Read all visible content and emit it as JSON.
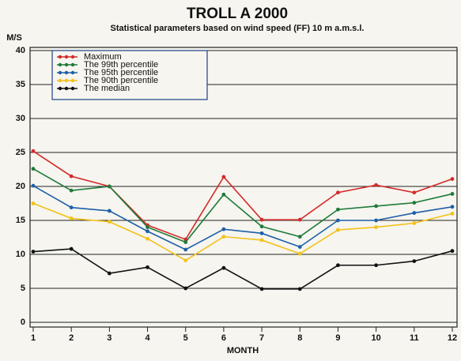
{
  "chart_data": {
    "type": "line",
    "title": "TROLL A 2000",
    "subtitle": "Statistical parameters based on wind speed (FF) 10 m a.m.s.l.",
    "y_label": "M/S",
    "x_label": "MONTH",
    "x": [
      1,
      2,
      3,
      4,
      5,
      6,
      7,
      8,
      9,
      10,
      11,
      12
    ],
    "xlim": [
      1,
      12
    ],
    "xticks": [
      1,
      2,
      3,
      4,
      5,
      6,
      7,
      8,
      9,
      10,
      11,
      12
    ],
    "ylim": [
      0,
      40
    ],
    "yticks": [
      0,
      5,
      10,
      15,
      20,
      25,
      30,
      35,
      40
    ],
    "grid": true,
    "legend": "top-left",
    "series": [
      {
        "name": "Maximum",
        "color": "#d42a2a",
        "values": [
          25.2,
          21.5,
          20,
          14.3,
          12.2,
          21.4,
          15.1,
          15.1,
          19.1,
          20.2,
          19.1,
          21.1
        ]
      },
      {
        "name": "The 99th percentile",
        "color": "#1f7a3a",
        "values": [
          22.6,
          19.4,
          20,
          14,
          11.8,
          18.8,
          14.1,
          12.6,
          16.6,
          17.1,
          17.6,
          18.9
        ]
      },
      {
        "name": "The 95th percentile",
        "color": "#1d5fa8",
        "values": [
          20.1,
          16.9,
          16.4,
          13.4,
          10.7,
          13.7,
          13.1,
          11.1,
          15,
          15,
          16.1,
          17
        ]
      },
      {
        "name": "The 90th percentile",
        "color": "#f2c21a",
        "values": [
          17.5,
          15.3,
          14.8,
          12.3,
          9.1,
          12.6,
          12.1,
          10.1,
          13.6,
          14,
          14.6,
          16
        ]
      },
      {
        "name": "The median",
        "color": "#111111",
        "values": [
          10.4,
          10.8,
          7.2,
          8.1,
          5,
          8,
          4.9,
          4.9,
          8.4,
          8.4,
          9,
          10.5
        ]
      }
    ]
  }
}
